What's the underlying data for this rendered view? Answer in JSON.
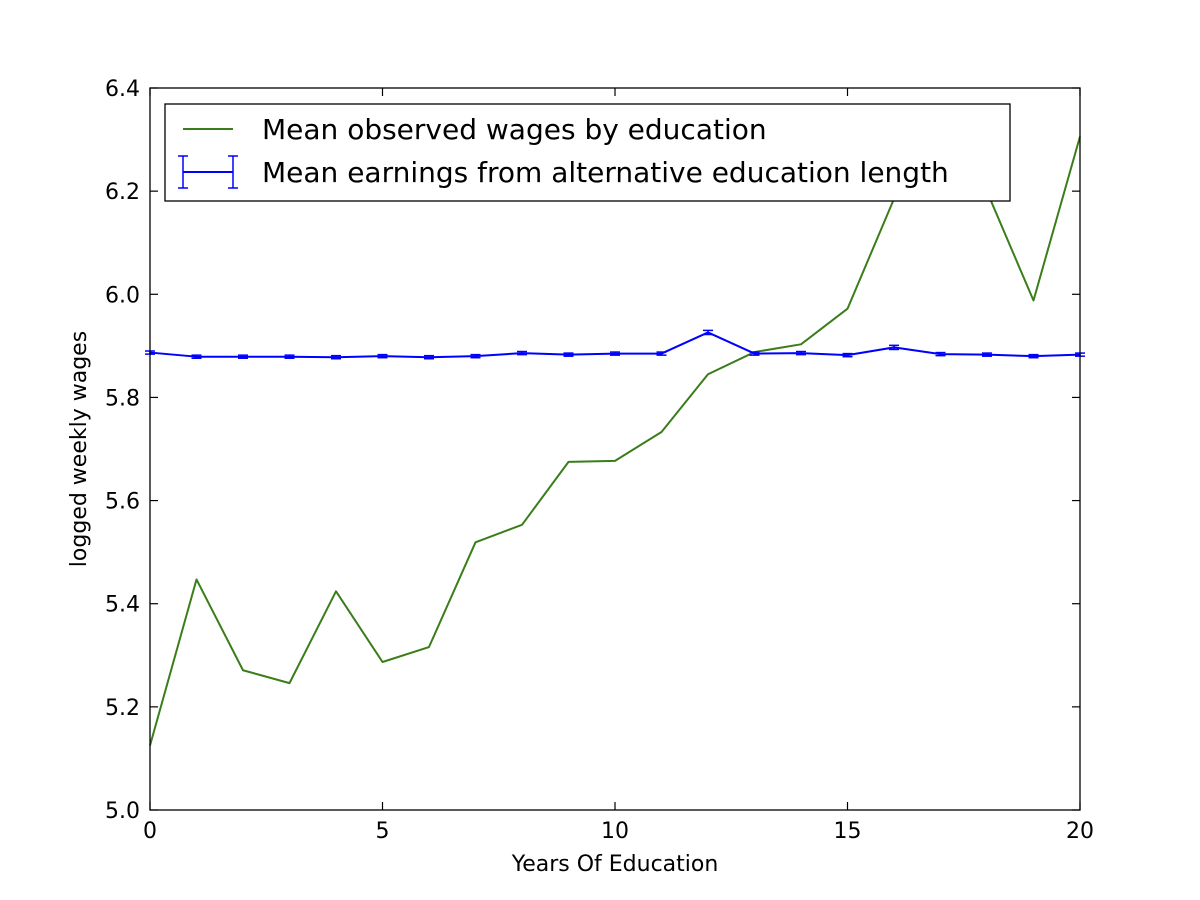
{
  "chart_data": {
    "type": "line",
    "title": "",
    "xlabel": "Years Of Education",
    "ylabel": "logged weekly wages",
    "xlim": [
      0,
      20
    ],
    "ylim": [
      5.0,
      6.4
    ],
    "xticks": [
      0,
      5,
      10,
      15,
      20
    ],
    "xtick_labels": [
      "0",
      "5",
      "10",
      "15",
      "20"
    ],
    "yticks": [
      5.0,
      5.2,
      5.4,
      5.6,
      5.8,
      6.0,
      6.2,
      6.4
    ],
    "ytick_labels": [
      "5.0",
      "5.2",
      "5.4",
      "5.6",
      "5.8",
      "6.0",
      "6.2",
      "6.4"
    ],
    "grid": false,
    "legend_position": "top-left",
    "x": [
      0,
      1,
      2,
      3,
      4,
      5,
      6,
      7,
      8,
      9,
      10,
      11,
      12,
      13,
      14,
      15,
      16,
      17,
      18,
      19,
      20
    ],
    "series": [
      {
        "name": "Mean observed wages by education",
        "color": "#3a7d1a",
        "style": "line",
        "values": [
          5.125,
          5.447,
          5.271,
          5.246,
          5.424,
          5.287,
          5.316,
          5.519,
          5.553,
          5.675,
          5.677,
          5.733,
          5.845,
          5.888,
          5.903,
          5.972,
          6.185,
          6.196,
          6.199,
          5.988,
          6.306
        ]
      },
      {
        "name": "Mean earnings from alternative education length",
        "color": "#0000ff",
        "style": "errorbar",
        "values": [
          5.887,
          5.879,
          5.879,
          5.879,
          5.878,
          5.88,
          5.878,
          5.88,
          5.886,
          5.883,
          5.885,
          5.885,
          5.926,
          5.885,
          5.886,
          5.882,
          5.897,
          5.884,
          5.883,
          5.88,
          5.883
        ],
        "errors": [
          0.003,
          0.003,
          0.003,
          0.003,
          0.003,
          0.003,
          0.003,
          0.003,
          0.003,
          0.003,
          0.003,
          0.003,
          0.004,
          0.003,
          0.003,
          0.003,
          0.004,
          0.003,
          0.003,
          0.003,
          0.003
        ]
      }
    ]
  }
}
